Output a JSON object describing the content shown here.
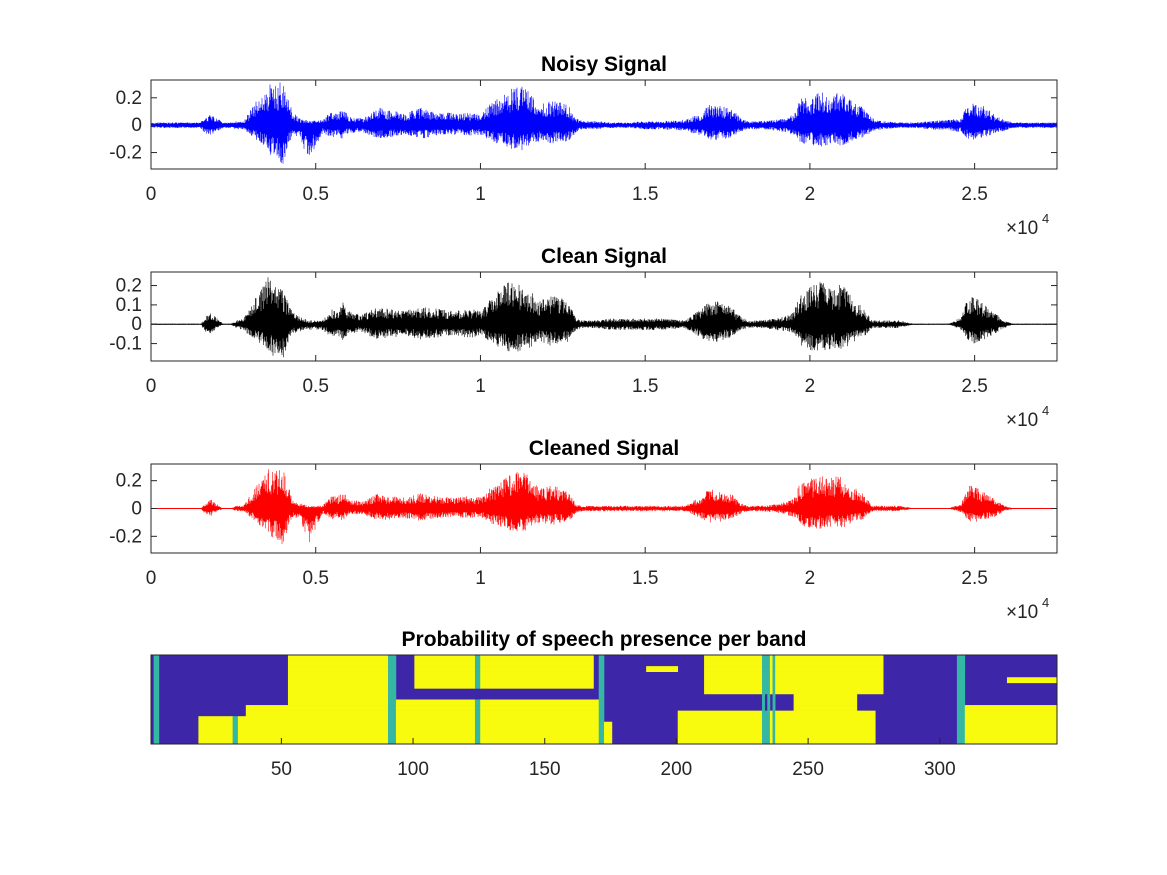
{
  "chart_data": [
    {
      "type": "line",
      "title": "Noisy Signal",
      "color": "#0000ff",
      "xlim": [
        0,
        27500
      ],
      "ylim": [
        -0.32,
        0.33
      ],
      "xticks": [
        0,
        5000,
        10000,
        15000,
        20000,
        25000
      ],
      "xtick_labels": [
        "0",
        "0.5",
        "1",
        "1.5",
        "2",
        "2.5"
      ],
      "yticks": [
        0.2,
        0,
        -0.2
      ],
      "ytick_labels": [
        "0.2",
        "0",
        "-0.2"
      ],
      "x_exponent_base": "×10",
      "x_exponent_power": "4",
      "noise_floor": 0.012,
      "envelope_x": [
        0,
        1500,
        1650,
        1800,
        1950,
        2200,
        2400,
        2600,
        2800,
        3400,
        3600,
        3750,
        4000,
        4150,
        4300,
        4500,
        4800,
        5200,
        5500,
        5650,
        5800,
        6000,
        6400,
        6700,
        6900,
        7200,
        7700,
        8200,
        8700,
        9200,
        9700,
        10000,
        10300,
        10600,
        10900,
        11200,
        11500,
        11800,
        12100,
        12400,
        12700,
        12900,
        13100,
        13500,
        14000,
        14500,
        15000,
        15500,
        16200,
        16700,
        16900,
        17200,
        17600,
        17900,
        18100,
        18500,
        19000,
        19500,
        19700,
        20000,
        20300,
        20700,
        21000,
        21300,
        21600,
        21900,
        22200,
        22700,
        23200,
        23600,
        24200,
        24600,
        24800,
        25000,
        25300,
        25600,
        25900,
        26200,
        27500
      ],
      "envelope_top": [
        0.02,
        0.02,
        0.06,
        0.09,
        0.06,
        0.02,
        0.02,
        0.03,
        0.03,
        0.25,
        0.3,
        0.28,
        0.33,
        0.2,
        0.1,
        0.05,
        0.03,
        0.04,
        0.12,
        0.09,
        0.13,
        0.07,
        0.05,
        0.09,
        0.13,
        0.11,
        0.09,
        0.13,
        0.1,
        0.09,
        0.09,
        0.08,
        0.16,
        0.21,
        0.26,
        0.3,
        0.25,
        0.15,
        0.18,
        0.17,
        0.14,
        0.05,
        0.03,
        0.03,
        0.02,
        0.02,
        0.03,
        0.03,
        0.04,
        0.09,
        0.15,
        0.15,
        0.12,
        0.06,
        0.03,
        0.03,
        0.04,
        0.08,
        0.19,
        0.21,
        0.25,
        0.24,
        0.25,
        0.18,
        0.13,
        0.05,
        0.03,
        0.02,
        0.02,
        0.03,
        0.04,
        0.05,
        0.17,
        0.18,
        0.14,
        0.08,
        0.04,
        0.02,
        0.02
      ],
      "envelope_bottom": [
        -0.02,
        -0.02,
        -0.06,
        -0.08,
        -0.05,
        -0.02,
        -0.02,
        -0.03,
        -0.03,
        -0.15,
        -0.22,
        -0.24,
        -0.31,
        -0.16,
        -0.07,
        -0.09,
        -0.27,
        -0.06,
        -0.1,
        -0.07,
        -0.1,
        -0.06,
        -0.05,
        -0.08,
        -0.1,
        -0.09,
        -0.08,
        -0.1,
        -0.08,
        -0.07,
        -0.08,
        -0.07,
        -0.12,
        -0.14,
        -0.17,
        -0.19,
        -0.15,
        -0.12,
        -0.14,
        -0.13,
        -0.12,
        -0.05,
        -0.03,
        -0.03,
        -0.02,
        -0.02,
        -0.03,
        -0.03,
        -0.04,
        -0.08,
        -0.11,
        -0.11,
        -0.09,
        -0.05,
        -0.03,
        -0.03,
        -0.04,
        -0.07,
        -0.13,
        -0.15,
        -0.16,
        -0.14,
        -0.15,
        -0.11,
        -0.09,
        -0.05,
        -0.03,
        -0.02,
        -0.02,
        -0.03,
        -0.04,
        -0.05,
        -0.1,
        -0.11,
        -0.09,
        -0.06,
        -0.04,
        -0.02,
        -0.02
      ]
    },
    {
      "type": "line",
      "title": "Clean Signal",
      "color": "#000000",
      "xlim": [
        0,
        27500
      ],
      "ylim": [
        -0.19,
        0.27
      ],
      "xticks": [
        0,
        5000,
        10000,
        15000,
        20000,
        25000
      ],
      "xtick_labels": [
        "0",
        "0.5",
        "1",
        "1.5",
        "2",
        "2.5"
      ],
      "yticks": [
        0.2,
        0.1,
        0,
        -0.1
      ],
      "ytick_labels": [
        "0.2",
        "0.1",
        "0",
        "-0.1"
      ],
      "x_exponent_base": "×10",
      "x_exponent_power": "4",
      "noise_floor": 0.002,
      "envelope_x": [
        0,
        1500,
        1650,
        1800,
        1950,
        2200,
        2400,
        2600,
        2800,
        3400,
        3600,
        3750,
        4000,
        4150,
        4300,
        4500,
        4800,
        5200,
        5500,
        5650,
        5800,
        6000,
        6400,
        6700,
        6900,
        7200,
        7700,
        8200,
        8700,
        9200,
        9700,
        10000,
        10300,
        10600,
        10900,
        11200,
        11500,
        11800,
        12100,
        12400,
        12700,
        12900,
        13100,
        13500,
        14000,
        14500,
        15000,
        15500,
        16200,
        16700,
        16900,
        17200,
        17600,
        17900,
        18100,
        18500,
        19000,
        19500,
        19700,
        20000,
        20300,
        20700,
        21000,
        21300,
        21600,
        21900,
        22200,
        22700,
        23200,
        23600,
        24200,
        24600,
        24800,
        25000,
        25300,
        25600,
        25900,
        26200,
        27500
      ],
      "envelope_top": [
        0.0,
        0.0,
        0.04,
        0.06,
        0.04,
        0.0,
        0.0,
        0.02,
        0.03,
        0.2,
        0.27,
        0.22,
        0.19,
        0.12,
        0.07,
        0.04,
        0.02,
        0.02,
        0.08,
        0.06,
        0.12,
        0.07,
        0.05,
        0.08,
        0.09,
        0.08,
        0.07,
        0.09,
        0.08,
        0.07,
        0.08,
        0.07,
        0.13,
        0.19,
        0.24,
        0.21,
        0.18,
        0.12,
        0.15,
        0.14,
        0.11,
        0.03,
        0.02,
        0.02,
        0.03,
        0.03,
        0.03,
        0.03,
        0.02,
        0.08,
        0.12,
        0.12,
        0.09,
        0.04,
        0.02,
        0.02,
        0.03,
        0.06,
        0.16,
        0.2,
        0.22,
        0.2,
        0.21,
        0.13,
        0.09,
        0.02,
        0.02,
        0.02,
        0.0,
        0.0,
        0.0,
        0.04,
        0.14,
        0.14,
        0.1,
        0.06,
        0.02,
        0.0,
        0.0
      ],
      "envelope_bottom": [
        0.0,
        0.0,
        -0.04,
        -0.05,
        -0.03,
        0.0,
        0.0,
        -0.02,
        -0.03,
        -0.12,
        -0.15,
        -0.17,
        -0.19,
        -0.1,
        -0.05,
        -0.04,
        -0.03,
        -0.03,
        -0.07,
        -0.05,
        -0.09,
        -0.05,
        -0.04,
        -0.07,
        -0.08,
        -0.07,
        -0.06,
        -0.08,
        -0.07,
        -0.06,
        -0.07,
        -0.06,
        -0.1,
        -0.12,
        -0.15,
        -0.14,
        -0.12,
        -0.09,
        -0.11,
        -0.1,
        -0.09,
        -0.03,
        -0.02,
        -0.02,
        -0.03,
        -0.03,
        -0.03,
        -0.03,
        -0.02,
        -0.07,
        -0.09,
        -0.09,
        -0.07,
        -0.03,
        -0.02,
        -0.02,
        -0.03,
        -0.05,
        -0.11,
        -0.14,
        -0.14,
        -0.13,
        -0.14,
        -0.1,
        -0.07,
        -0.02,
        -0.02,
        -0.02,
        0.0,
        0.0,
        0.0,
        -0.03,
        -0.09,
        -0.1,
        -0.08,
        -0.05,
        -0.02,
        0.0,
        0.0
      ]
    },
    {
      "type": "line",
      "title": "Cleaned Signal",
      "color": "#ff0000",
      "xlim": [
        0,
        27500
      ],
      "ylim": [
        -0.32,
        0.32
      ],
      "xticks": [
        0,
        5000,
        10000,
        15000,
        20000,
        25000
      ],
      "xtick_labels": [
        "0",
        "0.5",
        "1",
        "1.5",
        "2",
        "2.5"
      ],
      "yticks": [
        0.2,
        0,
        -0.2
      ],
      "ytick_labels": [
        "0.2",
        "0",
        "-0.2"
      ],
      "x_exponent_base": "×10",
      "x_exponent_power": "4",
      "noise_floor": 0.002,
      "envelope_x": [
        0,
        1500,
        1650,
        1800,
        1950,
        2200,
        2400,
        2600,
        2800,
        3400,
        3600,
        3750,
        4000,
        4150,
        4300,
        4500,
        4800,
        5200,
        5500,
        5650,
        5800,
        6000,
        6400,
        6700,
        6900,
        7200,
        7700,
        8200,
        8700,
        9200,
        9700,
        10000,
        10300,
        10600,
        10900,
        11200,
        11500,
        11800,
        12100,
        12400,
        12700,
        12900,
        13100,
        13500,
        14000,
        14500,
        15000,
        15500,
        16200,
        16700,
        16900,
        17200,
        17600,
        17900,
        18100,
        18500,
        19000,
        19500,
        19700,
        20000,
        20300,
        20700,
        21000,
        21300,
        21600,
        21900,
        22200,
        22700,
        23200,
        23600,
        24200,
        24600,
        24800,
        25000,
        25300,
        25600,
        25900,
        26200,
        27500
      ],
      "envelope_top": [
        0.0,
        0.0,
        0.04,
        0.07,
        0.04,
        0.0,
        0.0,
        0.02,
        0.02,
        0.24,
        0.29,
        0.26,
        0.31,
        0.17,
        0.08,
        0.04,
        0.02,
        0.02,
        0.1,
        0.08,
        0.13,
        0.07,
        0.05,
        0.09,
        0.11,
        0.09,
        0.08,
        0.11,
        0.09,
        0.08,
        0.09,
        0.08,
        0.15,
        0.2,
        0.26,
        0.29,
        0.23,
        0.14,
        0.17,
        0.16,
        0.13,
        0.03,
        0.02,
        0.02,
        0.02,
        0.02,
        0.02,
        0.02,
        0.02,
        0.09,
        0.14,
        0.14,
        0.11,
        0.04,
        0.02,
        0.02,
        0.03,
        0.07,
        0.18,
        0.21,
        0.25,
        0.23,
        0.24,
        0.16,
        0.11,
        0.02,
        0.02,
        0.02,
        0.0,
        0.0,
        0.0,
        0.04,
        0.16,
        0.17,
        0.12,
        0.07,
        0.02,
        0.0,
        0.0
      ],
      "envelope_bottom": [
        0.0,
        0.0,
        -0.04,
        -0.06,
        -0.03,
        0.0,
        0.0,
        -0.02,
        -0.02,
        -0.14,
        -0.2,
        -0.23,
        -0.31,
        -0.14,
        -0.06,
        -0.08,
        -0.26,
        -0.04,
        -0.08,
        -0.06,
        -0.09,
        -0.05,
        -0.04,
        -0.07,
        -0.09,
        -0.08,
        -0.07,
        -0.09,
        -0.07,
        -0.06,
        -0.07,
        -0.06,
        -0.11,
        -0.13,
        -0.16,
        -0.18,
        -0.14,
        -0.1,
        -0.12,
        -0.11,
        -0.1,
        -0.03,
        -0.02,
        -0.02,
        -0.02,
        -0.02,
        -0.02,
        -0.02,
        -0.02,
        -0.07,
        -0.1,
        -0.1,
        -0.08,
        -0.04,
        -0.02,
        -0.02,
        -0.03,
        -0.06,
        -0.12,
        -0.14,
        -0.15,
        -0.13,
        -0.14,
        -0.1,
        -0.08,
        -0.02,
        -0.02,
        -0.02,
        0.0,
        0.0,
        0.0,
        -0.03,
        -0.09,
        -0.1,
        -0.08,
        -0.06,
        -0.02,
        0.0,
        0.0
      ]
    },
    {
      "type": "heatmap",
      "title": "Probability of speech presence per band",
      "xlim": [
        0.5,
        344.5
      ],
      "xticks": [
        50,
        100,
        150,
        200,
        250,
        300
      ],
      "xtick_labels": [
        "50",
        "100",
        "150",
        "200",
        "250",
        "300"
      ],
      "ytick_labels": [],
      "colormap": [
        "#3e26a8",
        "#35b7a4",
        "#f9fb0e"
      ],
      "num_bands": 16,
      "num_frames": 344,
      "speech_regions": [
        {
          "x0": 52,
          "x1": 90,
          "b0": 0,
          "b1": 16
        },
        {
          "x0": 90,
          "x1": 93,
          "b0": 0,
          "b1": 13
        },
        {
          "x0": 93,
          "x1": 170,
          "b0": 0,
          "b1": 8
        },
        {
          "x0": 100,
          "x1": 168,
          "b0": 10,
          "b1": 16
        },
        {
          "x0": 18,
          "x1": 52,
          "b0": 0,
          "b1": 5
        },
        {
          "x0": 36,
          "x1": 52,
          "b0": 5,
          "b1": 7
        },
        {
          "x0": 170,
          "x1": 175,
          "b0": 0,
          "b1": 4
        },
        {
          "x0": 200,
          "x1": 275,
          "b0": 0,
          "b1": 6
        },
        {
          "x0": 210,
          "x1": 278,
          "b0": 9,
          "b1": 16
        },
        {
          "x0": 244,
          "x1": 268,
          "b0": 6,
          "b1": 10
        },
        {
          "x0": 308,
          "x1": 344,
          "b0": 0,
          "b1": 7
        },
        {
          "x0": 325,
          "x1": 344,
          "b0": 11,
          "b1": 12
        },
        {
          "x0": 188,
          "x1": 200,
          "b0": 13,
          "b1": 14
        }
      ],
      "edge_frames": [
        1,
        2,
        90,
        91,
        92,
        170,
        171,
        232,
        234,
        236,
        306,
        307,
        308
      ],
      "column_dips": [
        31,
        32,
        123,
        124,
        175,
        233
      ]
    }
  ]
}
